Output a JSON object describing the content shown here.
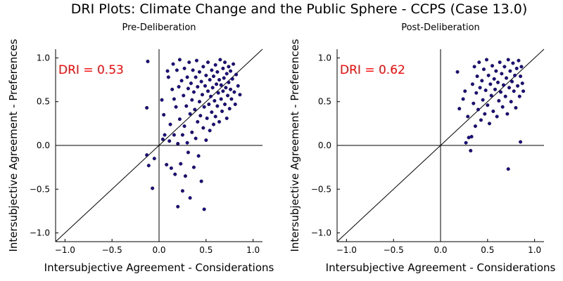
{
  "chart_data": {
    "title": "DRI Plots: Climate Change and the Public Sphere - CCPS (Case 13.0)",
    "panels": [
      {
        "type": "scatter",
        "subtitle": "Pre-Deliberation",
        "xlabel": "Intersubjective Agreement - Considerations",
        "ylabel": "Intersubjective Agreement - Preferences",
        "xlim": [
          -1.1,
          1.1
        ],
        "ylim": [
          -1.1,
          1.1
        ],
        "xticks": [
          "−1.0",
          "−0.5",
          "0.0",
          "0.5",
          "1.0"
        ],
        "yticks": [
          "−1.0",
          "−0.5",
          "0.0",
          "0.5",
          "1.0"
        ],
        "annotation": "DRI = 0.53",
        "annotation_color": "#ff0000",
        "reference_line": "y = x",
        "point_color": "#1a0d8c",
        "points": [
          [
            -0.12,
            0.96
          ],
          [
            -0.13,
            0.43
          ],
          [
            -0.13,
            -0.11
          ],
          [
            -0.11,
            -0.23
          ],
          [
            -0.07,
            -0.49
          ],
          [
            -0.05,
            -0.15
          ],
          [
            0.03,
            0.52
          ],
          [
            0.04,
            0.07
          ],
          [
            0.06,
            0.12
          ],
          [
            0.05,
            0.35
          ],
          [
            0.08,
            -0.22
          ],
          [
            0.09,
            0.85
          ],
          [
            0.1,
            0.78
          ],
          [
            0.11,
            0.05
          ],
          [
            0.12,
            0.24
          ],
          [
            0.13,
            -0.26
          ],
          [
            0.14,
            0.64
          ],
          [
            0.15,
            0.93
          ],
          [
            0.16,
            0.53
          ],
          [
            0.16,
            0.12
          ],
          [
            0.17,
            -0.33
          ],
          [
            0.18,
            0.44
          ],
          [
            0.19,
            0.86
          ],
          [
            0.2,
            0.02
          ],
          [
            0.2,
            -0.7
          ],
          [
            0.21,
            0.67
          ],
          [
            0.22,
            0.3
          ],
          [
            0.22,
            0.98
          ],
          [
            0.23,
            -0.21
          ],
          [
            0.24,
            0.74
          ],
          [
            0.25,
            0.12
          ],
          [
            0.25,
            -0.52
          ],
          [
            0.26,
            0.57
          ],
          [
            0.27,
            0.88
          ],
          [
            0.27,
            0.22
          ],
          [
            0.28,
            -0.35
          ],
          [
            0.29,
            0.45
          ],
          [
            0.3,
            0.78
          ],
          [
            0.3,
            0.03
          ],
          [
            0.31,
            0.65
          ],
          [
            0.31,
            -0.08
          ],
          [
            0.32,
            0.95
          ],
          [
            0.33,
            0.36
          ],
          [
            0.33,
            -0.6
          ],
          [
            0.34,
            0.71
          ],
          [
            0.35,
            0.15
          ],
          [
            0.35,
            0.52
          ],
          [
            0.36,
            0.86
          ],
          [
            0.37,
            -0.25
          ],
          [
            0.37,
            0.61
          ],
          [
            0.38,
            0.41
          ],
          [
            0.39,
            0.78
          ],
          [
            0.39,
            0.08
          ],
          [
            0.4,
            0.97
          ],
          [
            0.41,
            0.27
          ],
          [
            0.41,
            0.67
          ],
          [
            0.42,
            -0.12
          ],
          [
            0.43,
            0.5
          ],
          [
            0.43,
            0.84
          ],
          [
            0.44,
            0.34
          ],
          [
            0.45,
            0.73
          ],
          [
            0.45,
            -0.41
          ],
          [
            0.46,
            0.58
          ],
          [
            0.47,
            0.2
          ],
          [
            0.47,
            0.9
          ],
          [
            0.48,
            -0.73
          ],
          [
            0.48,
            0.44
          ],
          [
            0.49,
            0.68
          ],
          [
            0.5,
            0.06
          ],
          [
            0.5,
            0.8
          ],
          [
            0.51,
            0.31
          ],
          [
            0.52,
            0.62
          ],
          [
            0.52,
            0.95
          ],
          [
            0.53,
            0.47
          ],
          [
            0.54,
            0.17
          ],
          [
            0.54,
            0.75
          ],
          [
            0.55,
            0.56
          ],
          [
            0.56,
            0.86
          ],
          [
            0.56,
            0.38
          ],
          [
            0.57,
            0.66
          ],
          [
            0.58,
            0.24
          ],
          [
            0.58,
            0.79
          ],
          [
            0.59,
            0.51
          ],
          [
            0.6,
            0.92
          ],
          [
            0.6,
            0.33
          ],
          [
            0.61,
            0.7
          ],
          [
            0.62,
            0.45
          ],
          [
            0.62,
            0.84
          ],
          [
            0.63,
            0.6
          ],
          [
            0.64,
            0.27
          ],
          [
            0.64,
            0.75
          ],
          [
            0.65,
            0.98
          ],
          [
            0.66,
            0.53
          ],
          [
            0.66,
            0.69
          ],
          [
            0.67,
            0.39
          ],
          [
            0.68,
            0.88
          ],
          [
            0.68,
            0.62
          ],
          [
            0.69,
            0.77
          ],
          [
            0.7,
            0.47
          ],
          [
            0.7,
            0.95
          ],
          [
            0.71,
            0.66
          ],
          [
            0.72,
            0.31
          ],
          [
            0.72,
            0.82
          ],
          [
            0.73,
            0.57
          ],
          [
            0.74,
            0.72
          ],
          [
            0.74,
            0.9
          ],
          [
            0.75,
            0.42
          ],
          [
            0.76,
            0.64
          ],
          [
            0.76,
            0.85
          ],
          [
            0.77,
            0.53
          ],
          [
            0.78,
            0.76
          ],
          [
            0.79,
            0.93
          ],
          [
            0.8,
            0.61
          ],
          [
            0.81,
            0.47
          ],
          [
            0.82,
            0.81
          ],
          [
            0.84,
            0.68
          ],
          [
            0.86,
            0.58
          ]
        ]
      },
      {
        "type": "scatter",
        "subtitle": "Post-Deliberation",
        "xlabel": "Intersubjective Agreement - Considerations",
        "ylabel": "Intersubjective Agreement - Preferences",
        "xlim": [
          -1.1,
          1.1
        ],
        "ylim": [
          -1.1,
          1.1
        ],
        "xticks": [
          "−1.0",
          "−0.5",
          "0.0",
          "0.5",
          "1.0"
        ],
        "yticks": [
          "−1.0",
          "−0.5",
          "0.0",
          "0.5",
          "1.0"
        ],
        "annotation": "DRI = 0.62",
        "annotation_color": "#ff0000",
        "reference_line": "y = x",
        "point_color": "#1a0d8c",
        "points": [
          [
            0.18,
            0.84
          ],
          [
            0.2,
            0.42
          ],
          [
            0.24,
            0.53
          ],
          [
            0.26,
            0.62
          ],
          [
            0.27,
            0.03
          ],
          [
            0.29,
            0.33
          ],
          [
            0.3,
            0.09
          ],
          [
            0.32,
            -0.06
          ],
          [
            0.33,
            0.1
          ],
          [
            0.34,
            0.7
          ],
          [
            0.35,
            0.48
          ],
          [
            0.36,
            0.9
          ],
          [
            0.37,
            0.22
          ],
          [
            0.38,
            0.6
          ],
          [
            0.39,
            0.79
          ],
          [
            0.4,
            0.41
          ],
          [
            0.41,
            0.95
          ],
          [
            0.42,
            0.66
          ],
          [
            0.43,
            0.29
          ],
          [
            0.44,
            0.74
          ],
          [
            0.45,
            0.52
          ],
          [
            0.46,
            0.87
          ],
          [
            0.47,
            0.36
          ],
          [
            0.48,
            0.63
          ],
          [
            0.49,
            0.98
          ],
          [
            0.5,
            0.46
          ],
          [
            0.51,
            0.8
          ],
          [
            0.52,
            0.25
          ],
          [
            0.53,
            0.7
          ],
          [
            0.54,
            0.57
          ],
          [
            0.55,
            0.91
          ],
          [
            0.56,
            0.39
          ],
          [
            0.57,
            0.76
          ],
          [
            0.58,
            0.64
          ],
          [
            0.59,
            0.85
          ],
          [
            0.6,
            0.33
          ],
          [
            0.61,
            0.72
          ],
          [
            0.62,
            0.51
          ],
          [
            0.63,
            0.95
          ],
          [
            0.64,
            0.61
          ],
          [
            0.65,
            0.82
          ],
          [
            0.66,
            0.44
          ],
          [
            0.67,
            0.69
          ],
          [
            0.68,
            0.9
          ],
          [
            0.69,
            0.56
          ],
          [
            0.7,
            0.77
          ],
          [
            0.71,
            0.36
          ],
          [
            0.72,
            0.98
          ],
          [
            0.72,
            -0.27
          ],
          [
            0.73,
            0.66
          ],
          [
            0.74,
            0.85
          ],
          [
            0.75,
            0.5
          ],
          [
            0.76,
            0.73
          ],
          [
            0.77,
            0.94
          ],
          [
            0.78,
            0.62
          ],
          [
            0.79,
            0.8
          ],
          [
            0.8,
            0.43
          ],
          [
            0.81,
            0.88
          ],
          [
            0.82,
            0.68
          ],
          [
            0.83,
            0.97
          ],
          [
            0.84,
            0.56
          ],
          [
            0.85,
            0.79
          ],
          [
            0.85,
            0.04
          ],
          [
            0.86,
            0.9
          ],
          [
            0.87,
            0.71
          ],
          [
            0.88,
            0.62
          ]
        ]
      }
    ]
  }
}
